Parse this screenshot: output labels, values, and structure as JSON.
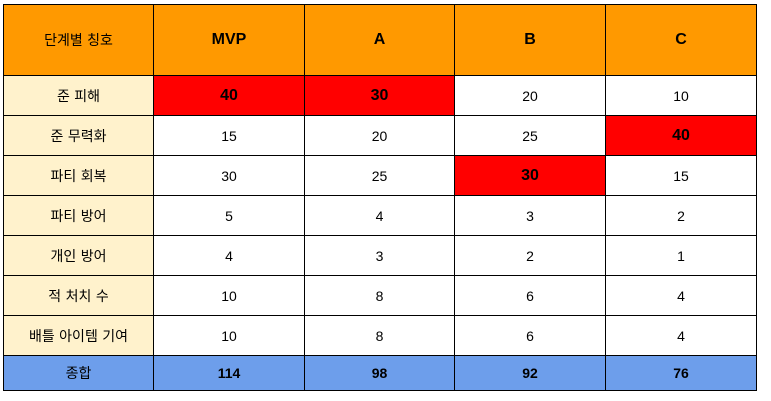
{
  "table": {
    "header": {
      "label": "단계별 칭호",
      "grades": [
        "MVP",
        "A",
        "B",
        "C"
      ]
    },
    "rows": [
      {
        "label": "준 피해",
        "values": [
          "40",
          "30",
          "20",
          "10"
        ]
      },
      {
        "label": "준 무력화",
        "values": [
          "15",
          "20",
          "25",
          "40"
        ]
      },
      {
        "label": "파티 회복",
        "values": [
          "30",
          "25",
          "30",
          "15"
        ]
      },
      {
        "label": "파티 방어",
        "values": [
          "5",
          "4",
          "3",
          "2"
        ]
      },
      {
        "label": "개인 방어",
        "values": [
          "4",
          "3",
          "2",
          "1"
        ]
      },
      {
        "label": "적 처치 수",
        "values": [
          "10",
          "8",
          "6",
          "4"
        ]
      },
      {
        "label": "배틀 아이템 기여",
        "values": [
          "10",
          "8",
          "6",
          "4"
        ]
      }
    ],
    "total": {
      "label": "종합",
      "values": [
        "114",
        "98",
        "92",
        "76"
      ]
    }
  },
  "colors": {
    "header_bg": "#ff9900",
    "label_bg": "#fff2cc",
    "highlight": "#ff0000",
    "total_bg": "#6d9eeb"
  }
}
